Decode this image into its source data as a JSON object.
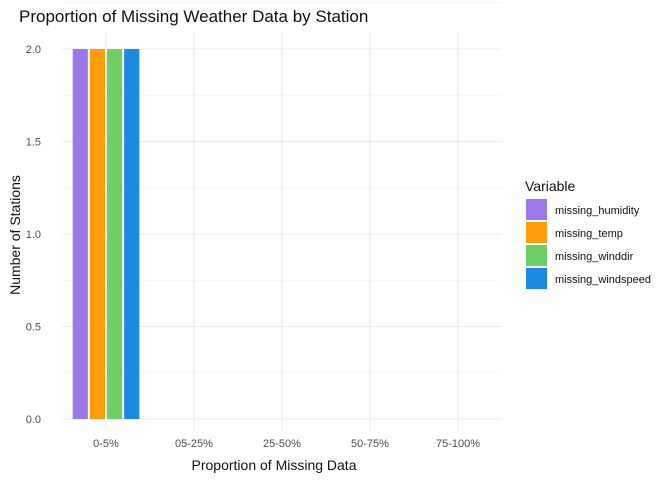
{
  "chart_data": {
    "type": "bar",
    "title": "Proportion of Missing Weather Data by Station",
    "xlabel": "Proportion of Missing Data",
    "ylabel": "Number of Stations",
    "categories": [
      "0-5%",
      "05-25%",
      "25-50%",
      "50-75%",
      "75-100%"
    ],
    "ylim": [
      0,
      2
    ],
    "yticks": [
      "0.0",
      "0.5",
      "1.0",
      "1.5",
      "2.0"
    ],
    "grid": true,
    "legend": {
      "title": "Variable",
      "position": "right"
    },
    "series": [
      {
        "name": "missing_humidity",
        "color": "#9B79EB",
        "values": [
          2,
          0,
          0,
          0,
          0
        ]
      },
      {
        "name": "missing_temp",
        "color": "#FF9D0A",
        "values": [
          2,
          0,
          0,
          0,
          0
        ]
      },
      {
        "name": "missing_winddir",
        "color": "#6FCF66",
        "values": [
          2,
          0,
          0,
          0,
          0
        ]
      },
      {
        "name": "missing_windspeed",
        "color": "#1A8BE0",
        "values": [
          2,
          0,
          0,
          0,
          0
        ]
      }
    ]
  }
}
